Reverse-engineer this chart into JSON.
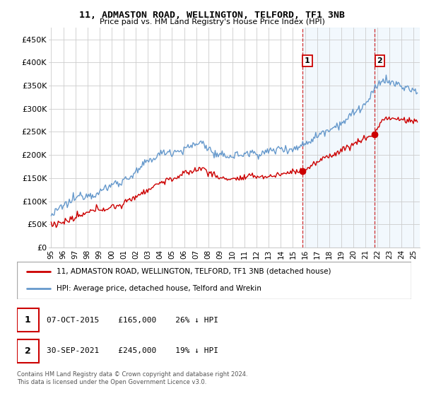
{
  "title": "11, ADMASTON ROAD, WELLINGTON, TELFORD, TF1 3NB",
  "subtitle": "Price paid vs. HM Land Registry's House Price Index (HPI)",
  "ylabel_ticks": [
    "£0",
    "£50K",
    "£100K",
    "£150K",
    "£200K",
    "£250K",
    "£300K",
    "£350K",
    "£400K",
    "£450K"
  ],
  "ytick_values": [
    0,
    50000,
    100000,
    150000,
    200000,
    250000,
    300000,
    350000,
    400000,
    450000
  ],
  "ylim": [
    0,
    475000
  ],
  "xlim_start": 1994.8,
  "xlim_end": 2025.5,
  "sale1_x": 2015.77,
  "sale1_y": 165000,
  "sale2_x": 2021.75,
  "sale2_y": 245000,
  "hpi_color": "#6699cc",
  "sale_color": "#cc0000",
  "legend_line1": "11, ADMASTON ROAD, WELLINGTON, TELFORD, TF1 3NB (detached house)",
  "legend_line2": "HPI: Average price, detached house, Telford and Wrekin",
  "annotation1_date": "07-OCT-2015",
  "annotation1_price": "£165,000",
  "annotation1_hpi": "26% ↓ HPI",
  "annotation2_date": "30-SEP-2021",
  "annotation2_price": "£245,000",
  "annotation2_hpi": "19% ↓ HPI",
  "footer": "Contains HM Land Registry data © Crown copyright and database right 2024.\nThis data is licensed under the Open Government Licence v3.0.",
  "grid_color": "#cccccc",
  "shaded_region1_start": 2015.77,
  "shaded_region1_end": 2021.75,
  "shaded_region2_start": 2021.75,
  "shaded_region2_end": 2025.5
}
